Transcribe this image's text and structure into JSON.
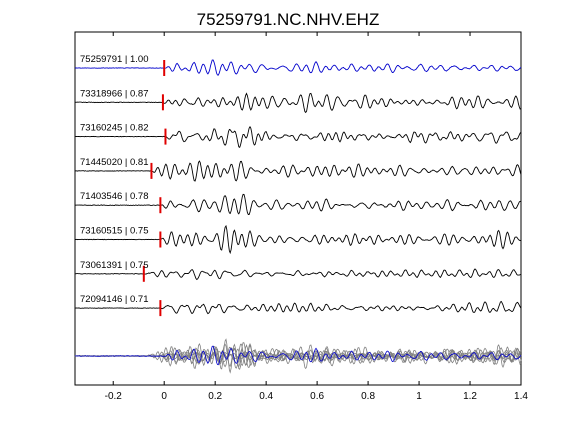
{
  "chart_data": {
    "type": "line",
    "title": "75259791.NC.NHV.EHZ",
    "xlabel": "",
    "ylabel": "",
    "xlim": [
      -0.35,
      1.4
    ],
    "xticks": [
      -0.2,
      0,
      0.2,
      0.4,
      0.6,
      0.8,
      1,
      1.2,
      1.4
    ],
    "xtick_labels": [
      "-0.2",
      "0",
      "0.2",
      "0.4",
      "0.6",
      "0.8",
      "1",
      "1.2",
      "1.4"
    ],
    "grid": false,
    "colors": {
      "master": "#0000cc",
      "trace": "#000000",
      "pick": "#e00000",
      "stack": "#808080"
    },
    "traces": [
      {
        "label": "75259791 | 1.00",
        "pick_time": 0.0,
        "color": "blue"
      },
      {
        "label": "73318966 | 0.87",
        "pick_time": -0.005,
        "color": "black"
      },
      {
        "label": "73160245 | 0.82",
        "pick_time": 0.005,
        "color": "black"
      },
      {
        "label": "71445020 | 0.81",
        "pick_time": -0.05,
        "color": "black"
      },
      {
        "label": "71403546 | 0.78",
        "pick_time": -0.015,
        "color": "black"
      },
      {
        "label": "73160515 | 0.75",
        "pick_time": -0.015,
        "color": "black"
      },
      {
        "label": "73061391 | 0.75",
        "pick_time": -0.08,
        "color": "black"
      },
      {
        "label": "72094146 | 0.71",
        "pick_time": -0.015,
        "color": "black"
      }
    ],
    "overlay": {
      "description_series": "all traces overlaid",
      "master_color": "blue",
      "others_color": "gray"
    }
  }
}
